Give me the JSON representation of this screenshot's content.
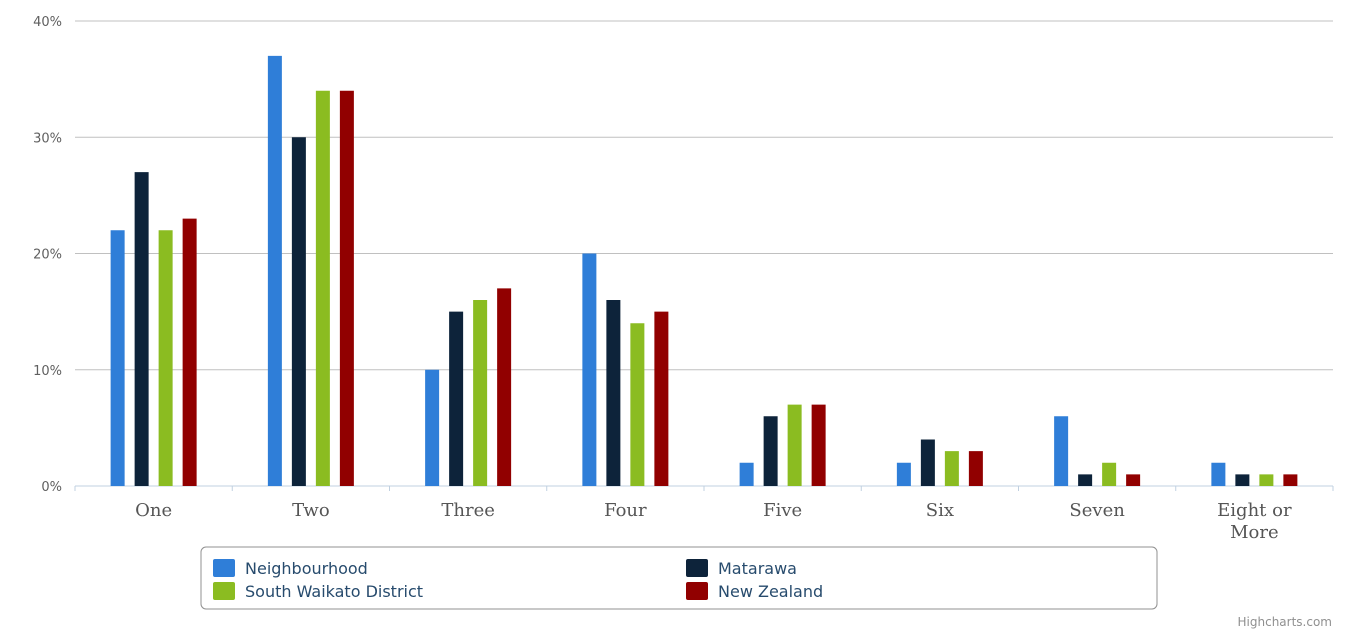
{
  "chart_data": {
    "type": "bar",
    "categories": [
      "One",
      "Two",
      "Three",
      "Four",
      "Five",
      "Six",
      "Seven",
      "Eight or More"
    ],
    "series": [
      {
        "name": "Neighbourhood",
        "color": "#2f7ed8",
        "values": [
          22,
          37,
          10,
          20,
          2,
          2,
          6,
          2
        ]
      },
      {
        "name": "Matarawa",
        "color": "#0d233a",
        "values": [
          27,
          30,
          15,
          16,
          6,
          4,
          1,
          1
        ]
      },
      {
        "name": "South Waikato District",
        "color": "#8bbc21",
        "values": [
          22,
          34,
          16,
          14,
          7,
          3,
          2,
          1
        ]
      },
      {
        "name": "New Zealand",
        "color": "#910000",
        "values": [
          23,
          34,
          17,
          15,
          7,
          3,
          1,
          1
        ]
      }
    ],
    "y_ticks": [
      "0%",
      "10%",
      "20%",
      "30%",
      "40%"
    ],
    "ylim": [
      0,
      40
    ],
    "grid": true,
    "legend_position": "bottom"
  },
  "credits": "Highcharts.com"
}
